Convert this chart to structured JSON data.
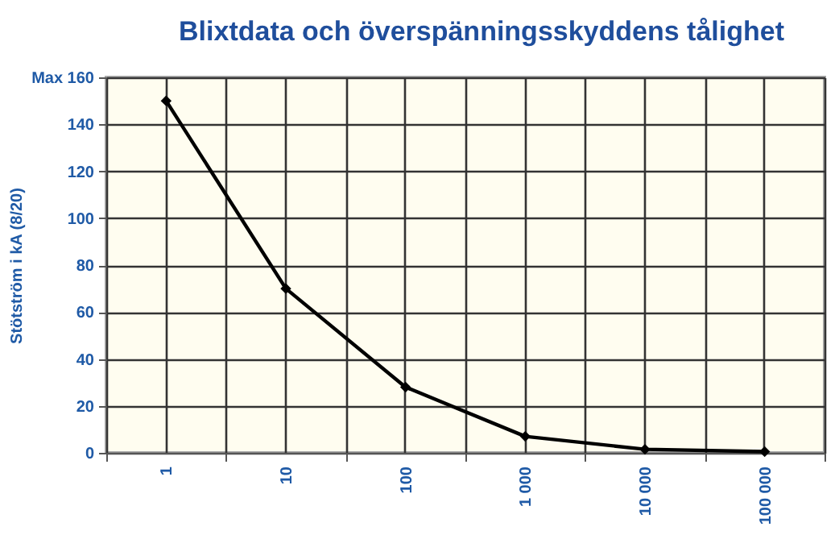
{
  "chart_data": {
    "type": "line",
    "title": "Blixtdata och överspänningsskyddens tålighet",
    "ylabel": "Stötström i kA (8/20)",
    "categories": [
      "1",
      "10",
      "100",
      "1 000",
      "10 000",
      "100 000"
    ],
    "series": [
      {
        "color": "#000000",
        "values": [
          150,
          70,
          28,
          7,
          1.5,
          0.5
        ]
      }
    ],
    "ylim": [
      0,
      160
    ],
    "yticks": [
      0,
      20,
      40,
      60,
      80,
      100,
      120,
      140,
      {
        "value": 160,
        "label": "Max 160"
      }
    ],
    "grid": true,
    "marker": "diamond",
    "line_style": "solid"
  }
}
